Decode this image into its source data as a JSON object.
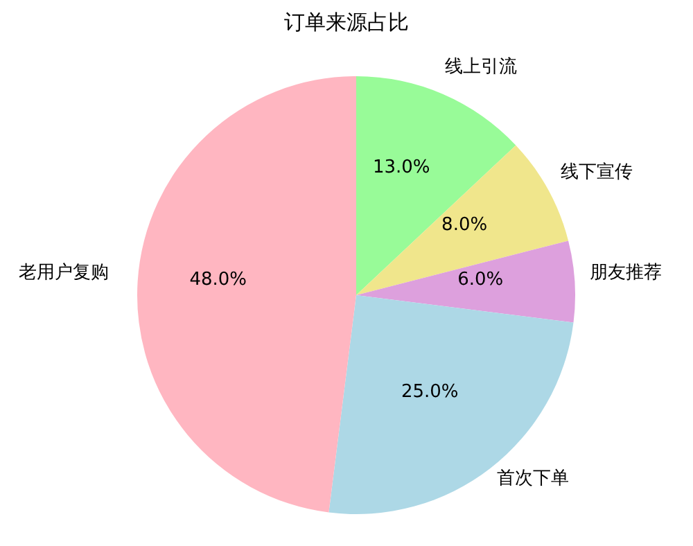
{
  "chart_data": {
    "type": "pie",
    "title": "订单来源占比",
    "categories": [
      "线上引流",
      "线下宣传",
      "朋友推荐",
      "首次下单",
      "老用户复购"
    ],
    "values": [
      13,
      8,
      6,
      25,
      48
    ],
    "value_labels": [
      "13.0%",
      "8.0%",
      "6.0%",
      "25.0%",
      "48.0%"
    ],
    "colors": [
      "#98fb98",
      "#f0e68c",
      "#dda0dd",
      "#add8e6",
      "#ffb6c1"
    ],
    "legend": false
  }
}
